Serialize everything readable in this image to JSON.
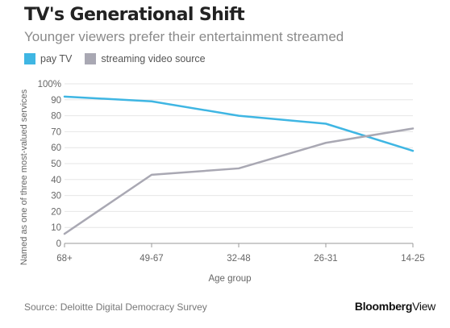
{
  "chart_data": {
    "type": "line",
    "title": "TV's Generational Shift",
    "subtitle": "Younger viewers prefer their entertainment streamed",
    "categories": [
      "68+",
      "49-67",
      "32-48",
      "26-31",
      "14-25"
    ],
    "series": [
      {
        "name": "pay TV",
        "color": "#3fb6e3",
        "values": [
          92,
          89,
          80,
          75,
          58
        ]
      },
      {
        "name": "streaming video source",
        "color": "#a9a8b3",
        "values": [
          6,
          43,
          47,
          63,
          72
        ]
      }
    ],
    "ylim": [
      0,
      100
    ],
    "yticks": [
      "0",
      "10",
      "20",
      "30",
      "40",
      "50",
      "60",
      "70",
      "80",
      "90",
      "100%"
    ],
    "xlabel": "Age group",
    "ylabel": "Named as one of three most-valued services",
    "grid": true,
    "legend_position": "top-left"
  },
  "source": "Source: Deloitte Digital Democracy Survey",
  "brand": {
    "part1": "Bloomberg",
    "part2": "View"
  }
}
